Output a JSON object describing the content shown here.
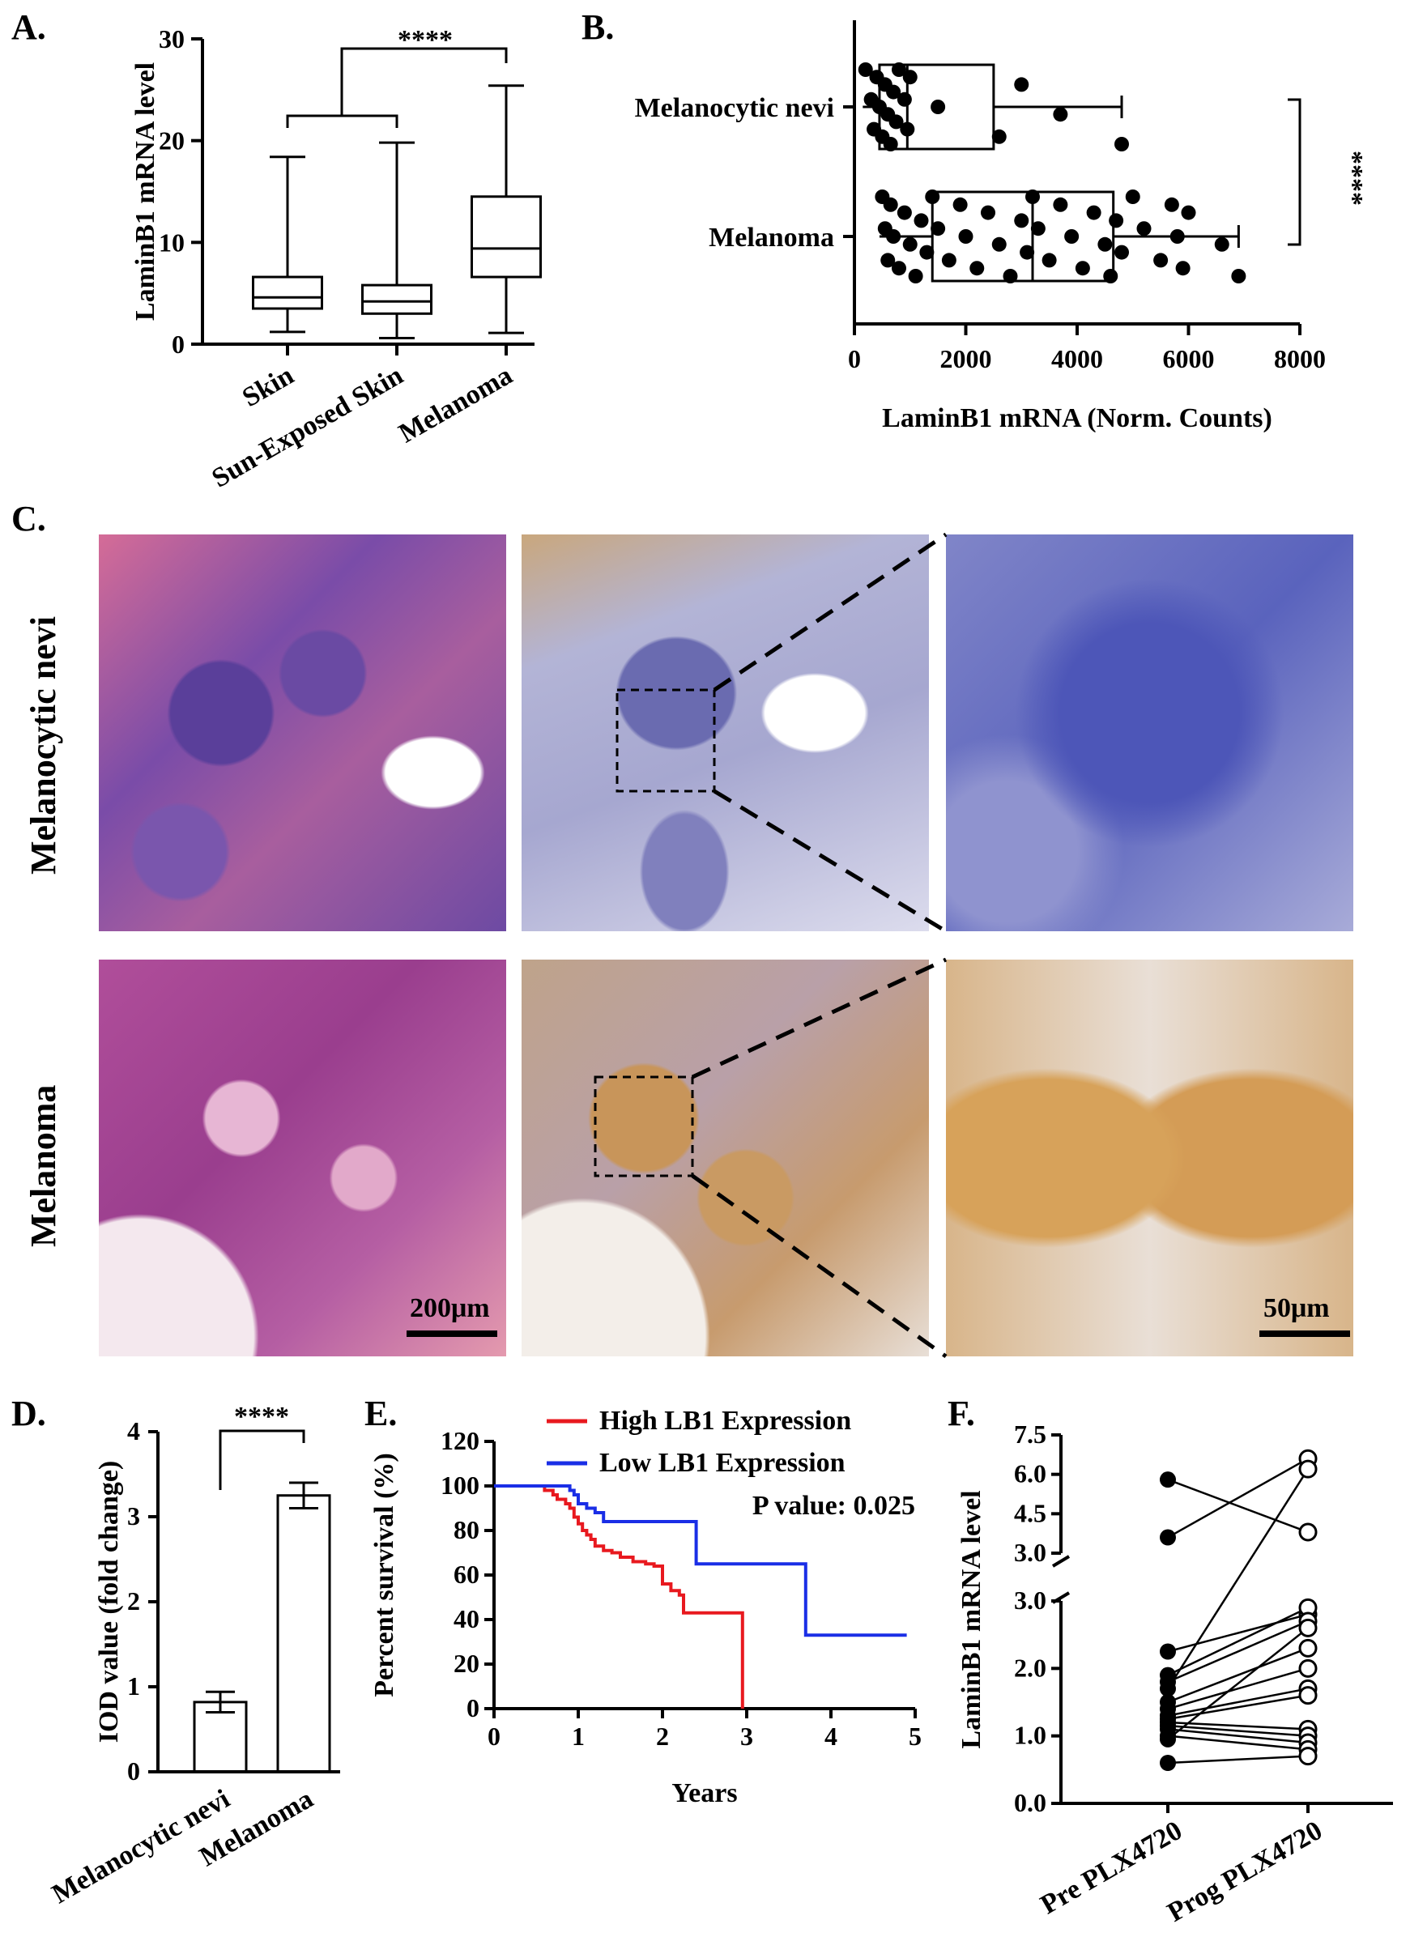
{
  "panels": {
    "A": {
      "letter": "A.",
      "chart_data": {
        "type": "box",
        "categories": [
          "Skin",
          "Sun-Exposed Skin",
          "Melanoma"
        ],
        "ylabel": "LaminB1 mRNA level",
        "ylim": [
          0,
          30
        ],
        "yticks": [
          0,
          10,
          20,
          30
        ],
        "boxes": [
          {
            "min": 1.2,
            "q1": 3.5,
            "median": 4.6,
            "q3": 6.6,
            "max": 18.4
          },
          {
            "min": 0.6,
            "q1": 3.0,
            "median": 4.2,
            "q3": 5.8,
            "max": 19.8
          },
          {
            "min": 1.1,
            "q1": 6.6,
            "median": 9.4,
            "q3": 14.5,
            "max": 25.4
          }
        ],
        "significance": "****"
      }
    },
    "B": {
      "letter": "B.",
      "chart_data": {
        "type": "box",
        "orientation": "horizontal",
        "categories": [
          "Melanocytic nevi",
          "Melanoma"
        ],
        "xlabel": "LaminB1 mRNA (Norm. Counts)",
        "xlim": [
          0,
          8000
        ],
        "xticks": [
          0,
          2000,
          4000,
          6000,
          8000
        ],
        "boxes": [
          {
            "min": 150,
            "q1": 450,
            "median": 950,
            "q3": 2500,
            "max": 4800
          },
          {
            "min": 450,
            "q1": 1400,
            "median": 3200,
            "q3": 4650,
            "max": 6900
          }
        ],
        "points": [
          [
            200,
            300,
            350,
            400,
            450,
            500,
            550,
            600,
            650,
            700,
            750,
            800,
            900,
            950,
            1000,
            1500,
            2600,
            3000,
            3700,
            4800
          ],
          [
            500,
            550,
            600,
            650,
            700,
            800,
            900,
            1000,
            1100,
            1200,
            1300,
            1400,
            1500,
            1700,
            1900,
            2000,
            2200,
            2400,
            2600,
            2800,
            3000,
            3100,
            3200,
            3300,
            3500,
            3700,
            3900,
            4100,
            4300,
            4500,
            4600,
            4700,
            4800,
            5000,
            5200,
            5500,
            5700,
            5800,
            5900,
            6000,
            6600,
            6900
          ]
        ],
        "significance": "****"
      }
    },
    "C": {
      "letter": "C.",
      "rows": [
        "Melanocytic nevi",
        "Melanoma"
      ],
      "scalebar_left": "200μm",
      "scalebar_right": "50μm"
    },
    "D": {
      "letter": "D.",
      "chart_data": {
        "type": "bar",
        "categories": [
          "Melanocytic nevi",
          "Melanoma"
        ],
        "values": [
          0.82,
          3.25
        ],
        "errors": [
          0.12,
          0.15
        ],
        "ylabel": "IOD value (fold change)",
        "ylim": [
          0,
          4
        ],
        "yticks": [
          0,
          1,
          2,
          3,
          4
        ],
        "significance": "****"
      }
    },
    "E": {
      "letter": "E.",
      "chart_data": {
        "type": "line",
        "xlabel": "Years",
        "ylabel": "Percent survival (%)",
        "xlim": [
          0,
          5
        ],
        "ylim": [
          0,
          120
        ],
        "xticks": [
          0,
          1,
          2,
          3,
          4,
          5
        ],
        "yticks": [
          0,
          20,
          40,
          60,
          80,
          100,
          120
        ],
        "annotation": "P value: 0.025",
        "series": [
          {
            "name": "High LB1 Expression",
            "color": "#e8191f",
            "x": [
              0,
              0.55,
              0.6,
              0.7,
              0.75,
              0.85,
              0.9,
              0.95,
              1.0,
              1.05,
              1.1,
              1.15,
              1.2,
              1.3,
              1.4,
              1.5,
              1.65,
              1.8,
              1.9,
              2.0,
              2.1,
              2.2,
              2.25,
              2.35,
              2.95,
              2.95
            ],
            "y": [
              100,
              100,
              98,
              96,
              94,
              92,
              90,
              86,
              83,
              80,
              78,
              76,
              73,
              71,
              70,
              68,
              66,
              65,
              64,
              56,
              53,
              51,
              43,
              43,
              43,
              0
            ]
          },
          {
            "name": "Low LB1 Expression",
            "color": "#1a2ee6",
            "x": [
              0,
              0.85,
              0.9,
              0.95,
              1.0,
              1.1,
              1.2,
              1.3,
              2.3,
              2.4,
              3.7,
              3.7,
              4.9
            ],
            "y": [
              100,
              100,
              98,
              96,
              92,
              90,
              88,
              84,
              84,
              65,
              65,
              33,
              33
            ]
          }
        ]
      }
    },
    "F": {
      "letter": "F.",
      "chart_data": {
        "type": "paired-scatter",
        "categories": [
          "Pre PLX4720",
          "Prog PLX4720"
        ],
        "ylabel": "LaminB1 mRNA level",
        "yticks_low": [
          "0.0",
          "1.0",
          "2.0",
          "3.0"
        ],
        "yticks_high": [
          "3.0",
          "4.5",
          "6.0",
          "7.5"
        ],
        "pairs": [
          [
            5.8,
            3.8
          ],
          [
            3.6,
            6.6
          ],
          [
            2.25,
            2.8
          ],
          [
            1.9,
            2.9
          ],
          [
            1.8,
            2.7
          ],
          [
            1.7,
            6.2
          ],
          [
            1.5,
            2.3
          ],
          [
            1.4,
            2.0
          ],
          [
            1.3,
            1.7
          ],
          [
            1.25,
            1.6
          ],
          [
            1.2,
            1.1
          ],
          [
            1.15,
            1.0
          ],
          [
            1.1,
            0.9
          ],
          [
            1.0,
            0.8
          ],
          [
            0.95,
            2.6
          ],
          [
            0.6,
            0.7
          ]
        ]
      }
    }
  }
}
